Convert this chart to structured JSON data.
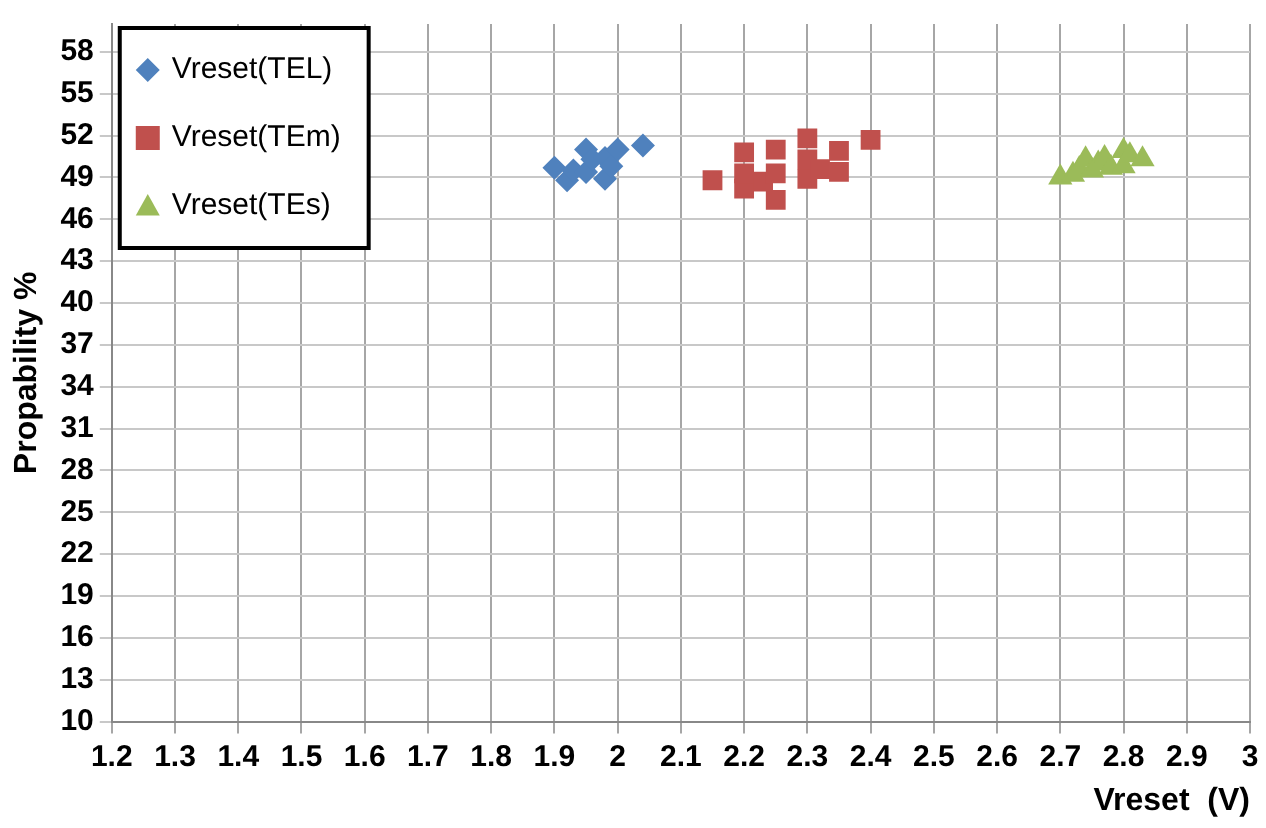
{
  "chart_data": {
    "type": "scatter",
    "xlabel": "Vreset  (V)",
    "ylabel": "Propability %",
    "xlim": [
      1.2,
      3
    ],
    "xticks": [
      1.2,
      1.3,
      1.4,
      1.5,
      1.6,
      1.7,
      1.8,
      1.9,
      2,
      2.1,
      2.2,
      2.3,
      2.4,
      2.5,
      2.6,
      2.7,
      2.8,
      2.9,
      3
    ],
    "ylim": [
      10,
      60
    ],
    "yticks": [
      10,
      13,
      16,
      19,
      22,
      25,
      28,
      31,
      34,
      37,
      40,
      43,
      46,
      49,
      52,
      55,
      58
    ],
    "grid": true,
    "legend": "top left",
    "series": [
      {
        "name": "Vreset(TEL)",
        "color": "#4f81bd",
        "marker": "diamond",
        "x": [
          1.9,
          1.92,
          1.93,
          1.95,
          1.95,
          1.96,
          1.98,
          1.98,
          1.99,
          2.0,
          2.04
        ],
        "values": [
          49.7,
          48.8,
          49.5,
          51.0,
          49.4,
          50.3,
          48.9,
          50.4,
          49.8,
          51.0,
          51.3
        ]
      },
      {
        "name": "Vreset(TEm)",
        "color": "#c0504d",
        "marker": "square",
        "x": [
          2.15,
          2.2,
          2.2,
          2.2,
          2.23,
          2.25,
          2.25,
          2.25,
          2.3,
          2.3,
          2.3,
          2.32,
          2.35,
          2.35,
          2.4
        ],
        "values": [
          48.8,
          48.2,
          49.3,
          50.8,
          48.7,
          47.4,
          49.3,
          51.0,
          48.9,
          50.3,
          51.8,
          49.6,
          49.4,
          50.9,
          51.7
        ]
      },
      {
        "name": "Vreset(TEs)",
        "color": "#9bbb59",
        "marker": "triangle",
        "x": [
          2.7,
          2.72,
          2.73,
          2.74,
          2.75,
          2.76,
          2.77,
          2.78,
          2.8,
          2.8,
          2.81,
          2.83
        ],
        "values": [
          49.0,
          49.2,
          49.6,
          50.3,
          49.5,
          50.0,
          50.4,
          49.7,
          50.9,
          49.8,
          50.6,
          50.3
        ]
      }
    ]
  }
}
